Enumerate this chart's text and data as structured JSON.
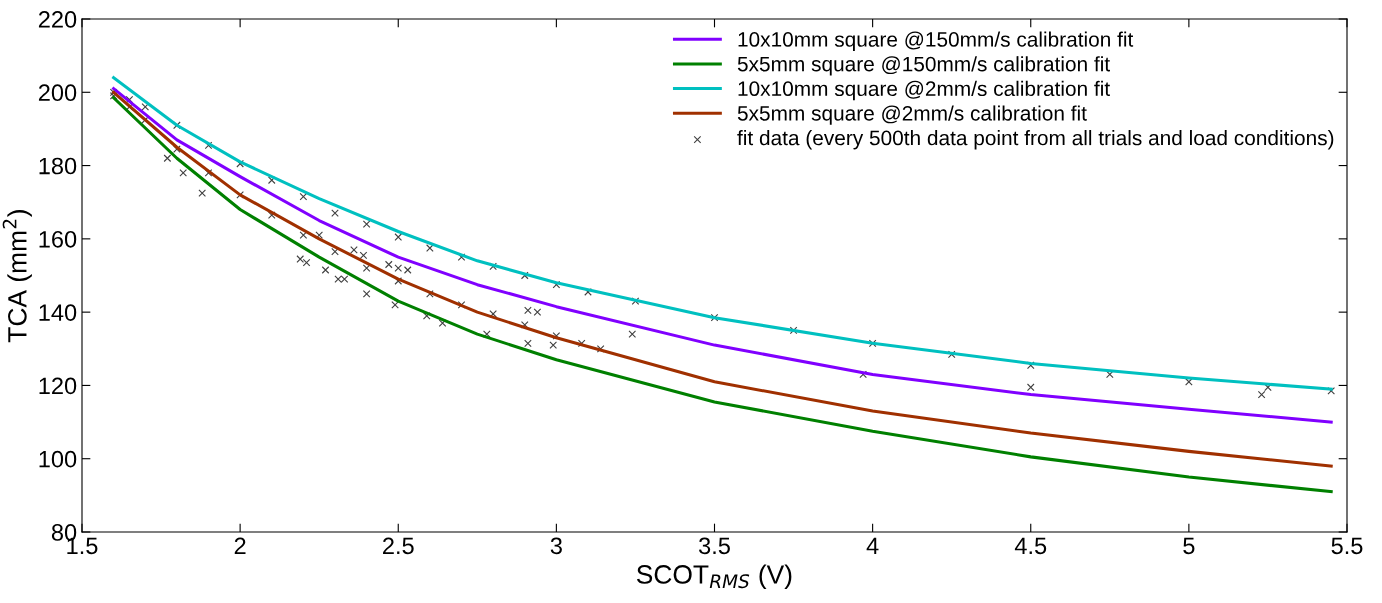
{
  "chart_data": {
    "type": "line",
    "xlabel": "SCOT$_{RMS}$ (V)",
    "ylabel": "TCA (mm$^{2}$)",
    "xlim": [
      1.5,
      5.5
    ],
    "ylim": [
      80,
      220
    ],
    "xticks": [
      1.5,
      2,
      2.5,
      3,
      3.5,
      4,
      4.5,
      5,
      5.5
    ],
    "yticks": [
      80,
      100,
      120,
      140,
      160,
      180,
      200,
      220
    ],
    "grid": false,
    "legend": "top right",
    "line_style": "solid",
    "series": [
      {
        "name": "10x10mm square @150mm/s calibration fit",
        "color": "#8000ff",
        "x": [
          1.6,
          1.8,
          2,
          2.25,
          2.5,
          2.75,
          3,
          3.5,
          4,
          4.5,
          5,
          5.45
        ],
        "values": [
          201,
          187,
          177,
          165,
          155,
          147.5,
          141.5,
          131,
          123,
          117.5,
          113.5,
          110
        ]
      },
      {
        "name": "5x5mm square @150mm/s calibration fit",
        "color": "#008000",
        "x": [
          1.6,
          1.8,
          2,
          2.25,
          2.5,
          2.75,
          3,
          3.5,
          4,
          4.5,
          5,
          5.45
        ],
        "values": [
          198.5,
          182,
          168,
          155,
          143,
          134,
          127,
          115.5,
          107.5,
          100.5,
          95,
          91
        ]
      },
      {
        "name": "10x10mm square @2mm/s calibration fit",
        "color": "#00c0c0",
        "x": [
          1.6,
          1.8,
          2,
          2.25,
          2.5,
          2.75,
          3,
          3.5,
          4,
          4.5,
          5,
          5.45
        ],
        "values": [
          204,
          191,
          181,
          171,
          162,
          154,
          148,
          138.5,
          131.5,
          126,
          122,
          119
        ]
      },
      {
        "name": "5x5mm square @2mm/s calibration fit",
        "color": "#a03000",
        "x": [
          1.6,
          1.8,
          2,
          2.25,
          2.5,
          2.75,
          3,
          3.5,
          4,
          4.5,
          5,
          5.45
        ],
        "values": [
          200,
          185,
          172,
          160,
          149,
          140,
          133,
          121,
          113,
          107,
          102,
          98
        ]
      },
      {
        "name": "fit data (every 500th data point from all trials and load conditions)",
        "type": "scatter",
        "marker": "cross",
        "color": "#404040",
        "x": [
          1.6,
          1.65,
          1.7,
          1.8,
          1.9,
          2,
          2.1,
          2.2,
          2.3,
          2.4,
          2.5,
          2.6,
          2.7,
          2.8,
          2.9,
          3,
          3.1,
          3.25,
          3.5,
          3.75,
          4,
          4.25,
          4.5,
          4.75,
          5,
          5.25,
          5.45,
          1.6,
          1.65,
          1.7,
          1.8,
          1.9,
          2,
          2.1,
          2.2,
          2.3,
          2.4,
          2.5,
          2.6,
          2.7,
          2.8,
          2.9,
          3,
          3.08,
          1.77,
          1.82,
          1.88,
          2.19,
          2.21,
          2.25,
          2.27,
          2.31,
          2.33,
          2.36,
          2.39,
          2.4,
          2.47,
          2.49,
          2.5,
          2.53,
          2.59,
          2.64,
          2.78,
          2.91,
          2.91,
          2.94,
          2.99,
          3.14,
          3.24,
          3.97,
          4.5,
          5.23
        ],
        "values": [
          200,
          198,
          196,
          191,
          185.5,
          180.5,
          176,
          171.5,
          167,
          164,
          160.5,
          157.5,
          155,
          152.5,
          150,
          147.5,
          145.5,
          143,
          138.5,
          135,
          131.5,
          128.5,
          125.5,
          123,
          121,
          119.5,
          118.5,
          199,
          196,
          192.5,
          184.5,
          178,
          172,
          166.5,
          161,
          156.5,
          152,
          148.5,
          145,
          142,
          139.5,
          136.5,
          133.5,
          131.5,
          182,
          178,
          172.5,
          154.5,
          153.5,
          161,
          151.5,
          149,
          149,
          157,
          155.5,
          145,
          153,
          142,
          152,
          151.5,
          139,
          137,
          134,
          131.5,
          140.5,
          140,
          131,
          130,
          134,
          123,
          119.5,
          117.5
        ]
      }
    ]
  }
}
